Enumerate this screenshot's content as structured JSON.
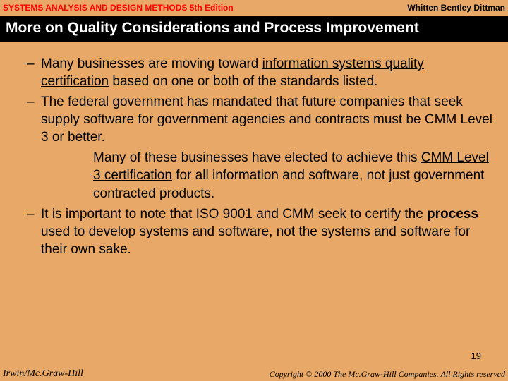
{
  "header": {
    "left": "SYSTEMS ANALYSIS AND DESIGN METHODS  5th Edition",
    "right": "Whitten   Bentley   Dittman"
  },
  "title": "More on Quality Considerations and Process Improvement",
  "bullets": {
    "b1_pre": "Many businesses are moving toward ",
    "b1_u": "information systems quality certification",
    "b1_post": " based on one or both of the standards listed.",
    "b2": "The federal government has mandated that future companies that seek supply software for government agencies and contracts must be CMM Level 3 or better.",
    "b2_sub_pre": "Many of these businesses have elected to achieve this ",
    "b2_sub_u": "CMM Level 3 certification",
    "b2_sub_post": " for all information and software, not just government contracted products.",
    "b3_pre": "It is important to note that ISO 9001 and CMM seek to certify the ",
    "b3_u": "process",
    "b3_post": " used to develop systems and software, not the systems and software for their own sake."
  },
  "page_number": "19",
  "footer": {
    "left": "Irwin/Mc.Graw-Hill",
    "right": "Copyright © 2000 The Mc.Graw-Hill Companies. All Rights reserved"
  },
  "dash": "–"
}
